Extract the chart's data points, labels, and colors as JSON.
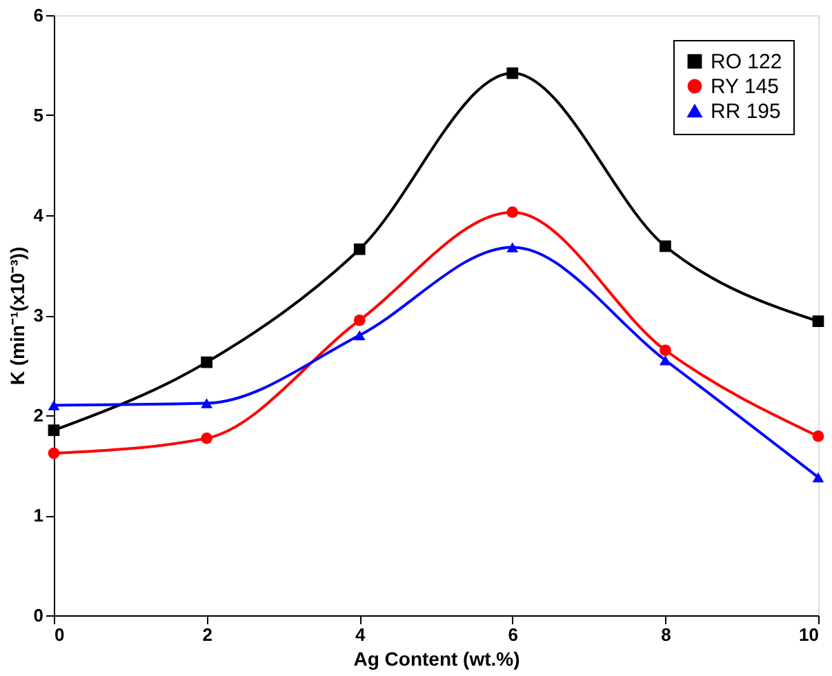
{
  "chart_data": {
    "type": "line",
    "xlabel": "Ag Content (wt.%)",
    "ylabel": "K (min⁻¹(x10⁻³))",
    "x": [
      0,
      2,
      4,
      6,
      8,
      10
    ],
    "series": [
      {
        "name": "RO 122",
        "color": "#000000",
        "marker": "square",
        "values": [
          1.85,
          2.53,
          3.66,
          5.42,
          3.69,
          2.94
        ]
      },
      {
        "name": "RY 145",
        "color": "#ff0000",
        "marker": "circle",
        "values": [
          1.62,
          1.77,
          2.95,
          4.03,
          2.65,
          1.79
        ]
      },
      {
        "name": "RR 195",
        "color": "#0000ff",
        "marker": "triangle",
        "values": [
          2.1,
          2.12,
          2.8,
          3.68,
          2.55,
          1.38
        ]
      }
    ],
    "xlim": [
      0,
      10
    ],
    "xticks": [
      0,
      2,
      4,
      6,
      8,
      10
    ],
    "ylim": [
      0,
      6
    ],
    "yticks": [
      0,
      1,
      2,
      3,
      4,
      5,
      6
    ],
    "grid": false,
    "legend": "top right",
    "line_style": "solid"
  }
}
